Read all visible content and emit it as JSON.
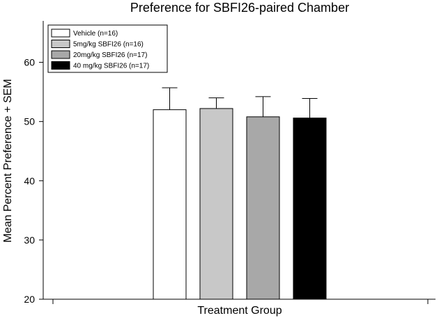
{
  "chart_data": {
    "type": "bar",
    "title": "Preference for SBFI26-paired Chamber",
    "xlabel": "Treatment Group",
    "ylabel": "Mean Percent Preference + SEM",
    "ylim": [
      20,
      67
    ],
    "yticks": [
      20,
      30,
      40,
      50,
      60
    ],
    "ytick_labels": [
      "20",
      "30",
      "40",
      "50",
      "60"
    ],
    "grid": false,
    "legend_position": "top-left",
    "series": [
      {
        "name": "Vehicle (n=16)",
        "value": 52.0,
        "error": 3.7,
        "color": "#ffffff"
      },
      {
        "name": "5mg/kg SBFI26 (n=16)",
        "value": 52.2,
        "error": 1.8,
        "color": "#c8c8c8"
      },
      {
        "name": "20mg/kg SBFI26 (n=17)",
        "value": 50.8,
        "error": 3.4,
        "color": "#a8a8a8"
      },
      {
        "name": "40 mg/kg SBFI26 (n=17)",
        "value": 50.6,
        "error": 3.3,
        "color": "#000000"
      }
    ]
  }
}
